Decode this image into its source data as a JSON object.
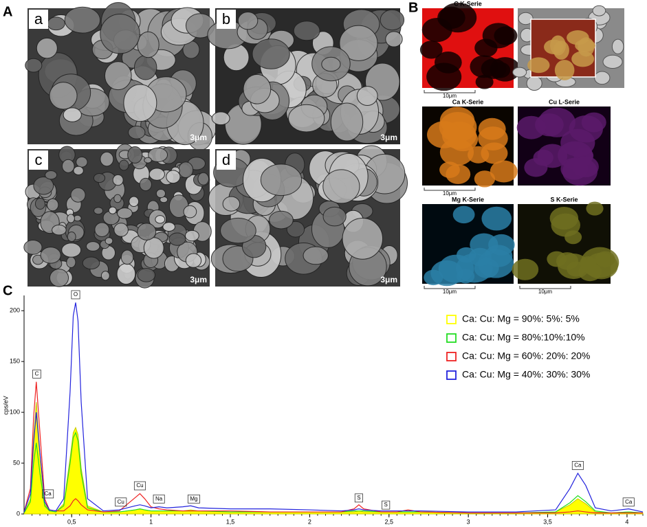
{
  "panels": {
    "A": "A",
    "B": "B",
    "C": "C",
    "sem": [
      {
        "label": "a",
        "scale": "3μm"
      },
      {
        "label": "b",
        "scale": "3μm"
      },
      {
        "label": "c",
        "scale": "3μm"
      },
      {
        "label": "d",
        "scale": "3μm"
      }
    ],
    "maps": [
      {
        "title": "C K-Serie",
        "scale": "10μm"
      },
      {
        "title": "Ca K-Serie",
        "scale": "10μm"
      },
      {
        "title": "Cu L-Serie"
      },
      {
        "title": "Mg K-Serie",
        "scale": "10μm"
      },
      {
        "title": "S K-Serie",
        "scale": "10μm"
      }
    ]
  },
  "chart_data": {
    "type": "line",
    "ylabel": "cps/eV",
    "xlim": [
      0.2,
      4.1
    ],
    "ylim": [
      0,
      215
    ],
    "xticks": [
      {
        "value": 0.5,
        "label": "0,5"
      },
      1,
      {
        "value": 1.5,
        "label": "1,5"
      },
      2,
      {
        "value": 2.5,
        "label": "2,5"
      },
      3,
      {
        "value": 3.5,
        "label": "3,5"
      },
      4
    ],
    "yticks": [
      0,
      50,
      100,
      150,
      200
    ],
    "x": [
      0.2,
      0.24,
      0.26,
      0.277,
      0.3,
      0.33,
      0.36,
      0.4,
      0.45,
      0.49,
      0.51,
      0.525,
      0.54,
      0.56,
      0.6,
      0.7,
      0.8,
      0.9,
      0.93,
      0.96,
      1.0,
      1.05,
      1.1,
      1.2,
      1.25,
      1.3,
      1.5,
      1.75,
      2.0,
      2.2,
      2.28,
      2.31,
      2.34,
      2.45,
      2.55,
      2.62,
      2.7,
      3.0,
      3.3,
      3.55,
      3.64,
      3.69,
      3.74,
      3.8,
      3.9,
      4.01,
      4.1
    ],
    "series": [
      {
        "name": "Ca: Cu: Mg = 90%: 5%: 5%",
        "color": "#ffff00",
        "fill": true,
        "values": [
          1,
          15,
          75,
          110,
          60,
          10,
          3,
          2,
          10,
          55,
          80,
          85,
          78,
          45,
          8,
          2,
          2,
          4,
          5,
          4,
          3,
          3,
          3,
          3,
          4,
          3,
          2,
          2,
          2,
          2,
          2,
          3,
          2,
          2,
          2,
          2,
          2,
          1,
          1,
          2,
          9,
          15,
          10,
          2,
          1,
          2,
          1
        ]
      },
      {
        "name": "Ca: Cu: Mg = 80%:10%:10%",
        "color": "#22dd22",
        "values": [
          1,
          12,
          50,
          70,
          40,
          8,
          3,
          2,
          8,
          50,
          75,
          80,
          72,
          40,
          6,
          2,
          2,
          4,
          5,
          4,
          3,
          3,
          3,
          3,
          3,
          3,
          2,
          2,
          2,
          2,
          3,
          3,
          3,
          2,
          2,
          2,
          2,
          1,
          1,
          2,
          11,
          18,
          12,
          3,
          1,
          2,
          1
        ]
      },
      {
        "name": "Ca: Cu: Mg = 60%: 20%: 20%",
        "color": "#ee2222",
        "values": [
          2,
          25,
          95,
          130,
          80,
          15,
          4,
          3,
          3,
          8,
          13,
          15,
          13,
          9,
          4,
          2,
          3,
          16,
          20,
          15,
          7,
          5,
          4,
          3,
          3,
          3,
          3,
          2,
          2,
          2,
          5,
          9,
          5,
          2,
          2,
          4,
          2,
          1,
          1,
          1,
          2,
          3,
          2,
          1,
          1,
          1,
          1
        ]
      },
      {
        "name": "Ca: Cu: Mg = 40%: 30%: 30%",
        "color": "#2222dd",
        "values": [
          2,
          20,
          70,
          100,
          60,
          12,
          4,
          3,
          15,
          120,
          195,
          208,
          190,
          110,
          15,
          3,
          4,
          8,
          9,
          8,
          6,
          7,
          6,
          7,
          8,
          6,
          5,
          5,
          4,
          3,
          4,
          5,
          4,
          3,
          3,
          3,
          3,
          2,
          2,
          4,
          25,
          40,
          28,
          6,
          3,
          5,
          2
        ]
      }
    ],
    "annotations": [
      {
        "text": "O",
        "x": 0.525,
        "y": 213
      },
      {
        "text": "C",
        "x": 0.28,
        "y": 135
      },
      {
        "text": "Ca",
        "x": 0.35,
        "y": 17
      },
      {
        "text": "Cu",
        "x": 0.81,
        "y": 9
      },
      {
        "text": "Cu",
        "x": 0.93,
        "y": 25
      },
      {
        "text": "Na",
        "x": 1.05,
        "y": 12
      },
      {
        "text": "Mg",
        "x": 1.27,
        "y": 12
      },
      {
        "text": "S",
        "x": 2.31,
        "y": 13
      },
      {
        "text": "S",
        "x": 2.48,
        "y": 6
      },
      {
        "text": "Ca",
        "x": 3.69,
        "y": 45
      },
      {
        "text": "Ca",
        "x": 4.01,
        "y": 9
      }
    ]
  }
}
